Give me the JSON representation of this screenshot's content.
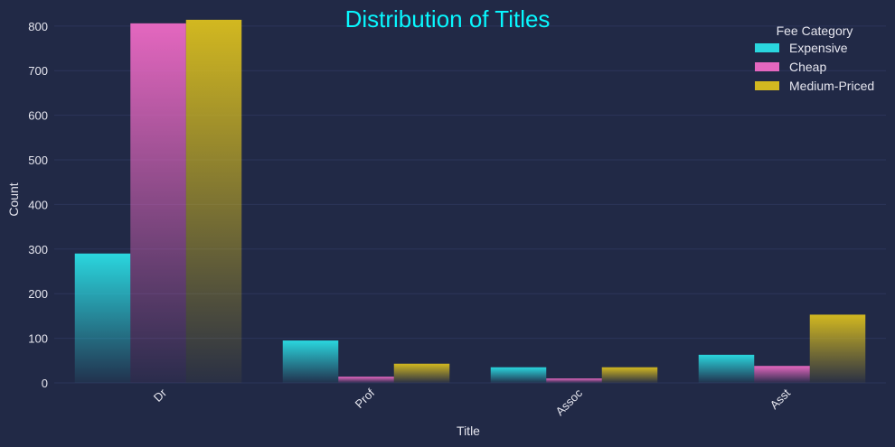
{
  "chart_data": {
    "type": "bar",
    "title": "Distribution of Titles",
    "xlabel": "Title",
    "ylabel": "Count",
    "categories": [
      "Dr",
      "Prof",
      "Assoc",
      "Asst"
    ],
    "ylim": [
      0,
      830
    ],
    "yticks": [
      0,
      100,
      200,
      300,
      400,
      500,
      600,
      700,
      800
    ],
    "grid": true,
    "legend": {
      "title": "Fee Category",
      "placement": "top-right"
    },
    "series": [
      {
        "name": "Expensive",
        "color": "#2ad6de",
        "values": [
          290,
          95,
          35,
          63
        ]
      },
      {
        "name": "Cheap",
        "color": "#e467bf",
        "values": [
          806,
          14,
          10,
          38
        ]
      },
      {
        "name": "Medium-Priced",
        "color": "#d2b820",
        "values": [
          814,
          43,
          35,
          153
        ]
      }
    ]
  }
}
